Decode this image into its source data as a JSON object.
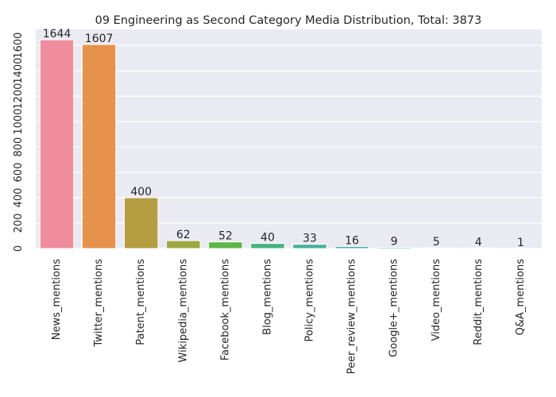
{
  "chart_data": {
    "type": "bar",
    "title": "09 Engineering as Second Category Media Distribution, Total: 3873",
    "xlabel": "",
    "ylabel": "",
    "categories": [
      "News_mentions",
      "Twitter_mentions",
      "Patent_mentions",
      "Wikipedia_mentions",
      "Facebook_mentions",
      "Blog_mentions",
      "Policy_mentions",
      "Peer_review_mentions",
      "Google+_mentions",
      "Video_mentions",
      "Reddit_mentions",
      "Q&A_mentions"
    ],
    "values": [
      1644,
      1607,
      400,
      62,
      52,
      40,
      33,
      16,
      9,
      5,
      4,
      1
    ],
    "data_labels": [
      "1644",
      "1607",
      "400",
      "62",
      "52",
      "40",
      "33",
      "16",
      "9",
      "5",
      "4",
      "1"
    ],
    "yticks": [
      0,
      200,
      400,
      600,
      800,
      1000,
      1200,
      1400,
      1600
    ],
    "ytick_labels": [
      "0",
      "200",
      "400",
      "600",
      "800",
      "1000",
      "1200",
      "1400",
      "1600"
    ],
    "ylim": [
      0,
      1726
    ],
    "grid": true,
    "legend": "none",
    "colors": {
      "background": "#eaeaf2",
      "grid": "#ffffff",
      "bars": [
        "#f08d9d",
        "#e6924c",
        "#b59e42",
        "#9ca742",
        "#5cb648",
        "#45b37f",
        "#45b09d",
        "#48aeb4",
        "#48abc6",
        "#7fa7ec",
        "#c79bef",
        "#f08ad9"
      ]
    }
  }
}
